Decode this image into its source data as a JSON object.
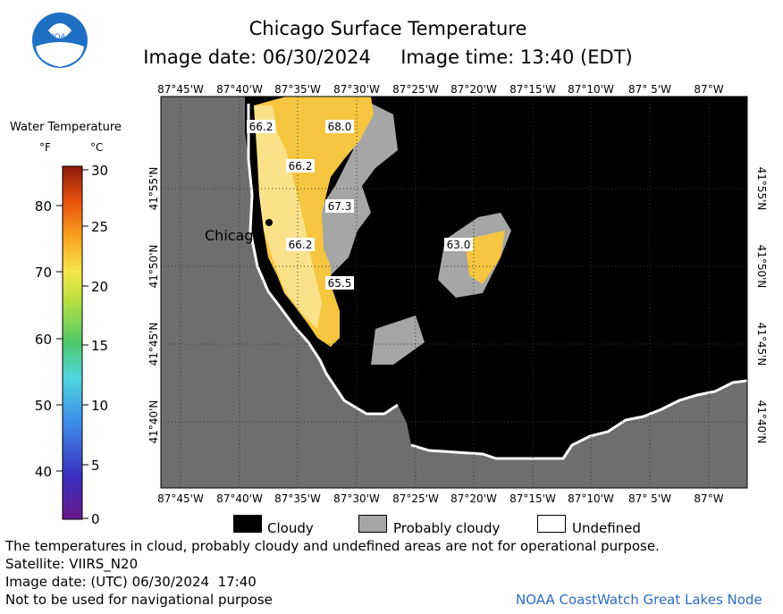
{
  "header": {
    "title": "Chicago Surface Temperature",
    "image_date_line": "Image date: 06/30/2024     Image time: 13:40 (EDT)"
  },
  "logo": {
    "text": "NOAA",
    "icon": "noaa-logo-icon"
  },
  "colorbar": {
    "title": "Water Temperature",
    "unit_f": "°F",
    "unit_c": "°C",
    "f_ticks": [
      "80",
      "70",
      "60",
      "50",
      "40"
    ],
    "c_ticks": [
      "30",
      "25",
      "20",
      "15",
      "10",
      "5",
      "0"
    ]
  },
  "map": {
    "top_lon_labels": [
      "87°45'W",
      "87°40'W",
      "87°35'W",
      "87°30'W",
      "87°25'W",
      "87°20'W",
      "87°15'W",
      "87°10'W",
      "87° 5'W",
      "87°W"
    ],
    "bottom_lon_labels": [
      "87°45'W",
      "87°40'W",
      "87°35'W",
      "87°30'W",
      "87°25'W",
      "87°20'W",
      "87°15'W",
      "87°10'W",
      "87° 5'W",
      "87°W"
    ],
    "lat_labels": [
      "41°55'N",
      "41°50'N",
      "41°45'N",
      "41°40'N"
    ],
    "city": "Chicago",
    "contour_labels": [
      "66.2",
      "68.0",
      "66.2",
      "67.3",
      "66.2",
      "63.0",
      "65.5"
    ],
    "colors": {
      "land": "#6e6e6e",
      "cloudy": "#000000",
      "probably_cloudy": "#a6a6a6",
      "undefined": "#ffffff",
      "warm": "#f6c640",
      "light": "#fbe28a"
    }
  },
  "legend": {
    "cloudy": "Cloudy",
    "probably_cloudy": "Probably cloudy",
    "undefined": "Undefined"
  },
  "footer": {
    "line1": "The temperatures in cloud, probably cloudy and undefined areas are not for operational purpose.",
    "line2": "Satellite: VIIRS_N20",
    "line3": "Image date: (UTC) 06/30/2024  17:40",
    "line4": "Not to be used for navigational purpose",
    "credit": "NOAA CoastWatch Great Lakes Node"
  }
}
